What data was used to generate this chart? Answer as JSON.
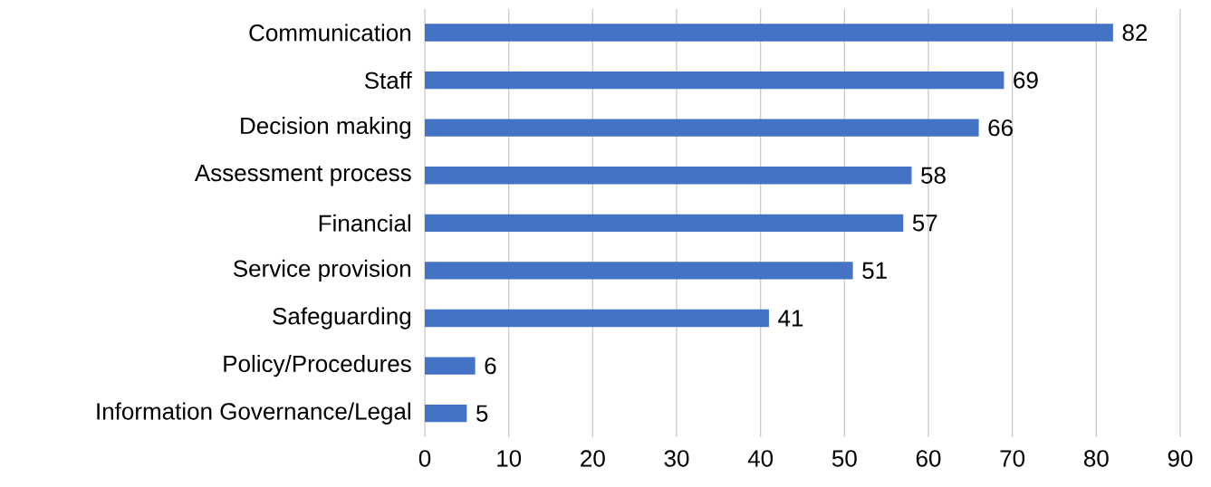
{
  "chart_data": {
    "type": "bar",
    "orientation": "horizontal",
    "categories": [
      "Communication",
      "Staff",
      "Decision making",
      "Assessment process",
      "Financial",
      "Service provision",
      "Safeguarding",
      "Policy/Procedures",
      "Information Governance/Legal"
    ],
    "values": [
      82,
      69,
      66,
      58,
      57,
      51,
      41,
      6,
      5
    ],
    "color": "#4472c4",
    "xlim": [
      0,
      90
    ],
    "xticks": [
      0,
      10,
      20,
      30,
      40,
      50,
      60,
      70,
      80,
      90
    ],
    "grid": "x",
    "data_labels": true
  }
}
